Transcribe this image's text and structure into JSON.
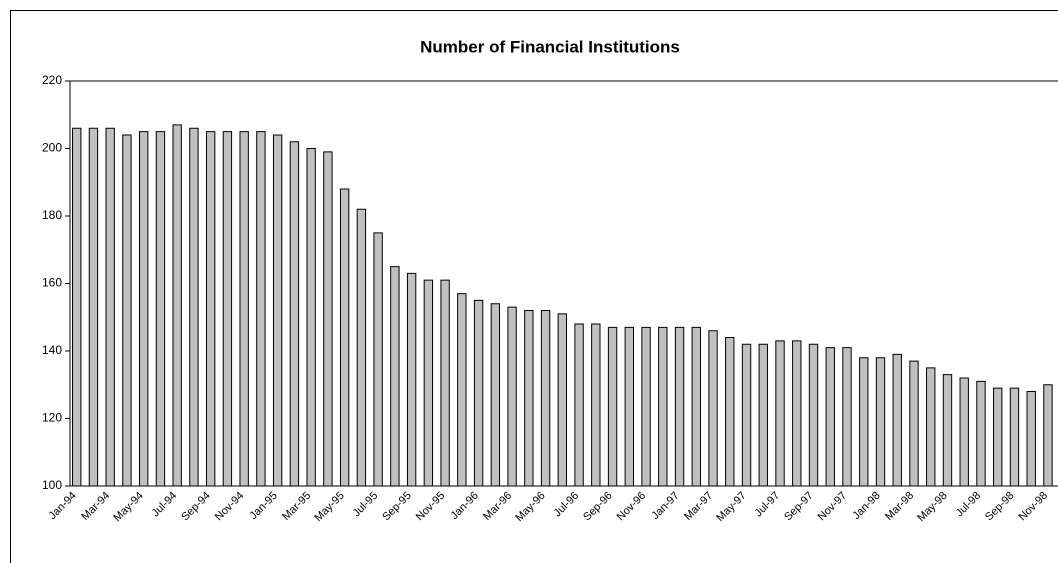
{
  "chart_data": {
    "type": "bar",
    "title": "Number of Financial Institutions",
    "categories": [
      "Jan-94",
      null,
      "Mar-94",
      null,
      "May-94",
      null,
      "Jul-94",
      null,
      "Sep-94",
      null,
      "Nov-94",
      null,
      "Jan-95",
      null,
      "Mar-95",
      null,
      "May-95",
      null,
      "Jul-95",
      null,
      "Sep-95",
      null,
      "Nov-95",
      null,
      "Jan-96",
      null,
      "Mar-96",
      null,
      "May-96",
      null,
      "Jul-96",
      null,
      "Sep-96",
      null,
      "Nov-96",
      null,
      "Jan-97",
      null,
      "Mar-97",
      null,
      "May-97",
      null,
      "Jul-97",
      null,
      "Sep-97",
      null,
      "Nov-97",
      null,
      "Jan-98",
      null,
      "Mar-98",
      null,
      "May-98",
      null,
      "Jul-98",
      null,
      "Sep-98",
      null,
      "Nov-98"
    ],
    "values": [
      206,
      206,
      206,
      204,
      205,
      205,
      207,
      206,
      205,
      205,
      205,
      205,
      204,
      202,
      200,
      199,
      188,
      182,
      175,
      165,
      163,
      161,
      161,
      157,
      155,
      154,
      153,
      152,
      152,
      151,
      148,
      148,
      147,
      147,
      147,
      147,
      147,
      147,
      146,
      144,
      142,
      142,
      143,
      143,
      142,
      141,
      141,
      138,
      138,
      139,
      137,
      135,
      133,
      132,
      131,
      129,
      129,
      128,
      130
    ],
    "color": "#c0c0c0",
    "ylim": [
      100,
      220
    ],
    "yticks": [
      100,
      120,
      140,
      160,
      180,
      200,
      220
    ],
    "grid": false
  }
}
